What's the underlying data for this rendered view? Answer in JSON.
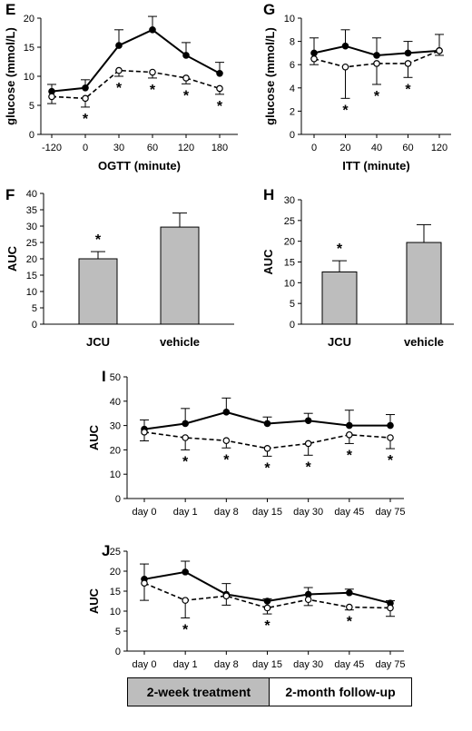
{
  "legend": {
    "treatment": "2-week treatment",
    "followup": "2-month follow-up",
    "treatment_color": "#bdbdbd",
    "followup_color": "#ffffff"
  },
  "chart_data": [
    {
      "panel": "E",
      "type": "line",
      "xlabel": "OGTT (minute)",
      "ylabel": "glucose (mmol/L)",
      "ylim": [
        0,
        20
      ],
      "yticks": [
        0,
        5,
        10,
        15,
        20
      ],
      "categories": [
        "-120",
        "0",
        "30",
        "60",
        "120",
        "180"
      ],
      "series": [
        {
          "style": "solid",
          "marker": "filled",
          "values": [
            7.4,
            8.0,
            15.3,
            18.0,
            13.6,
            10.5
          ],
          "err": [
            1.2,
            1.4,
            2.7,
            2.3,
            2.2,
            1.9
          ]
        },
        {
          "style": "dashed",
          "marker": "open",
          "values": [
            6.5,
            6.2,
            11.0,
            10.7,
            9.7,
            7.9
          ],
          "err": [
            1.2,
            1.5,
            1.0,
            1.0,
            1.0,
            1.0
          ],
          "err_dir": "down"
        }
      ],
      "stars": [
        1,
        2,
        3,
        4,
        5
      ],
      "star": "*"
    },
    {
      "panel": "G",
      "type": "line",
      "xlabel": "ITT (minute)",
      "ylabel": "glucose (mmol/L)",
      "ylim": [
        0,
        10
      ],
      "yticks": [
        0,
        2,
        4,
        6,
        8,
        10
      ],
      "categories": [
        "0",
        "20",
        "40",
        "60",
        "120"
      ],
      "series": [
        {
          "style": "solid",
          "marker": "filled",
          "values": [
            7.0,
            7.6,
            6.8,
            7.0,
            7.2
          ],
          "err": [
            1.3,
            1.4,
            1.5,
            1.0,
            1.4
          ]
        },
        {
          "style": "dashed",
          "marker": "open",
          "values": [
            6.5,
            5.8,
            6.1,
            6.1,
            7.2
          ],
          "err": [
            0.5,
            2.7,
            1.8,
            1.2,
            0.4
          ],
          "err_dir": "down"
        }
      ],
      "stars": [
        1,
        2,
        3
      ],
      "star": "*"
    },
    {
      "panel": "F",
      "type": "bar",
      "ylabel": "AUC",
      "ylim": [
        0,
        40
      ],
      "yticks": [
        0,
        5,
        10,
        15,
        20,
        25,
        30,
        35,
        40
      ],
      "categories": [
        "JCU",
        "vehicle"
      ],
      "values": [
        20,
        29.7
      ],
      "err": [
        2.2,
        4.3
      ],
      "stars": [
        0
      ],
      "star": "*"
    },
    {
      "panel": "H",
      "type": "bar",
      "ylabel": "AUC",
      "ylim": [
        0,
        30
      ],
      "yticks": [
        0,
        5,
        10,
        15,
        20,
        25,
        30
      ],
      "categories": [
        "JCU",
        "vehicle"
      ],
      "values": [
        12.6,
        19.7
      ],
      "err": [
        2.7,
        4.3
      ],
      "stars": [
        0
      ],
      "star": "*"
    },
    {
      "panel": "I",
      "type": "line",
      "ylabel": "AUC",
      "ylim": [
        0,
        50
      ],
      "yticks": [
        0,
        10,
        20,
        30,
        40,
        50
      ],
      "categories": [
        "day 0",
        "day 1",
        "day 8",
        "day 15",
        "day 30",
        "day 45",
        "day 75"
      ],
      "series": [
        {
          "style": "solid",
          "marker": "filled",
          "values": [
            28.5,
            30.8,
            35.5,
            30.8,
            32.0,
            30.0,
            30.0
          ],
          "err": [
            3.8,
            6.2,
            5.8,
            2.7,
            3.0,
            6.3,
            4.5
          ]
        },
        {
          "style": "dashed",
          "marker": "open",
          "values": [
            27.3,
            25.0,
            23.8,
            20.6,
            22.6,
            26.2,
            25.0
          ],
          "err": [
            3.6,
            5.0,
            3.0,
            3.2,
            4.8,
            3.6,
            4.5
          ],
          "err_dir": "down"
        }
      ],
      "stars": [
        1,
        2,
        3,
        4,
        5,
        6
      ],
      "star": "*"
    },
    {
      "panel": "J",
      "type": "line",
      "ylabel": "AUC",
      "ylim": [
        0,
        25
      ],
      "yticks": [
        0,
        5,
        10,
        15,
        20,
        25
      ],
      "categories": [
        "day 0",
        "day 1",
        "day 8",
        "day 15",
        "day 30",
        "day 45",
        "day 75"
      ],
      "series": [
        {
          "style": "solid",
          "marker": "filled",
          "values": [
            18.0,
            19.8,
            14.2,
            12.5,
            14.2,
            14.6,
            12.0
          ],
          "err": [
            3.8,
            2.7,
            2.7,
            0.6,
            1.7,
            0.9,
            0.6
          ]
        },
        {
          "style": "dashed",
          "marker": "open",
          "values": [
            17.0,
            12.7,
            13.8,
            10.8,
            12.9,
            11.0,
            10.8
          ],
          "err": [
            4.3,
            4.4,
            2.3,
            1.5,
            1.5,
            0.7,
            2.1
          ],
          "err_dir": "down"
        }
      ],
      "stars": [
        1,
        3,
        5
      ],
      "star": "*"
    }
  ]
}
